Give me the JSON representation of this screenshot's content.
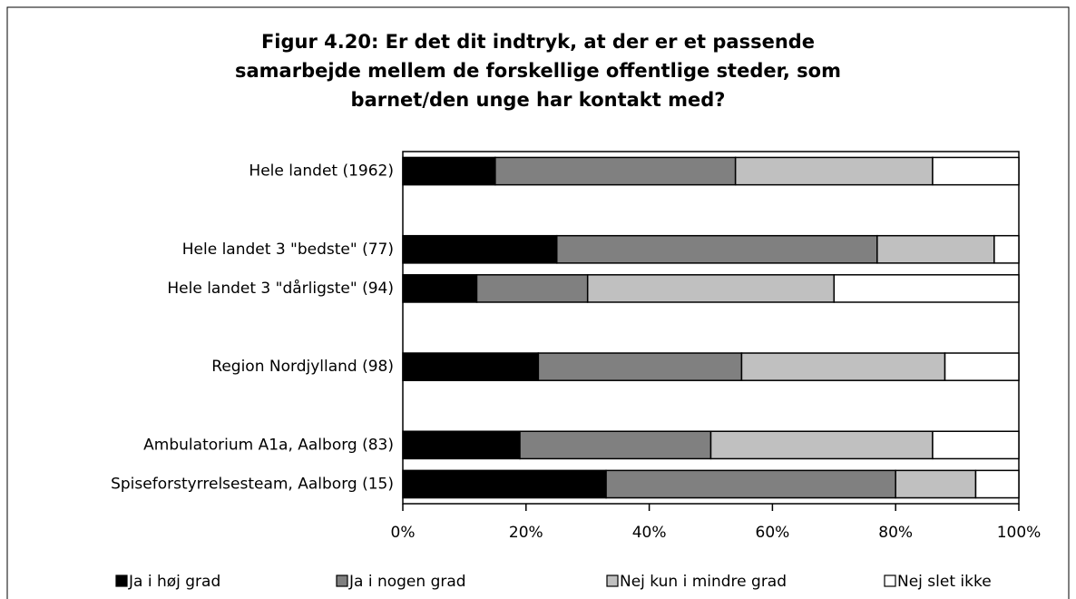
{
  "chart_data": {
    "type": "stacked-barh",
    "title": [
      "Figur 4.20: Er det dit indtryk, at der er et passende",
      "samarbejde mellem de forskellige offentlige steder, som",
      "barnet/den unge har kontakt med?"
    ],
    "categories": [
      "Hele landet  (1962)",
      null,
      "Hele landet 3 \"bedste\" (77)",
      "Hele landet 3 \"dårligste\" (94)",
      null,
      "Region Nordjylland (98)",
      null,
      "Ambulatorium A1a, Aalborg (83)",
      "Spiseforstyrrelsesteam, Aalborg (15)"
    ],
    "series": [
      {
        "name": "Ja i høj grad",
        "color": "#000000",
        "values": [
          15,
          null,
          25,
          12,
          null,
          22,
          null,
          19,
          33
        ]
      },
      {
        "name": "Ja i nogen grad",
        "color": "#808080",
        "values": [
          39,
          null,
          52,
          18,
          null,
          33,
          null,
          31,
          47
        ]
      },
      {
        "name": "Nej kun i mindre grad",
        "color": "#c0c0c0",
        "values": [
          32,
          null,
          19,
          40,
          null,
          33,
          null,
          36,
          13
        ]
      },
      {
        "name": "Nej slet ikke",
        "color": "#ffffff",
        "values": [
          14,
          null,
          4,
          30,
          null,
          12,
          null,
          14,
          7
        ]
      }
    ],
    "xlim": [
      0,
      100
    ],
    "xticks": [
      {
        "value": 0,
        "label": "0%"
      },
      {
        "value": 20,
        "label": "20%"
      },
      {
        "value": 40,
        "label": "40%"
      },
      {
        "value": 60,
        "label": "60%"
      },
      {
        "value": 80,
        "label": "80%"
      },
      {
        "value": 100,
        "label": "100%"
      }
    ],
    "legend": "bottom"
  }
}
